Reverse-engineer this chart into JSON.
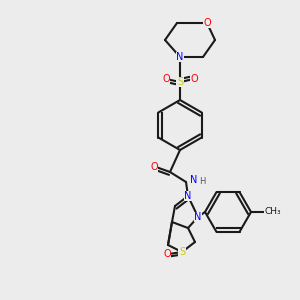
{
  "bg_color": "#ececec",
  "bond_color": "#1a1a1a",
  "atom_colors": {
    "O": "#ff0000",
    "N": "#0000ff",
    "S": "#cccc00",
    "C": "#1a1a1a",
    "H": "#555555"
  },
  "figsize": [
    3.0,
    3.0
  ],
  "dpi": 100
}
